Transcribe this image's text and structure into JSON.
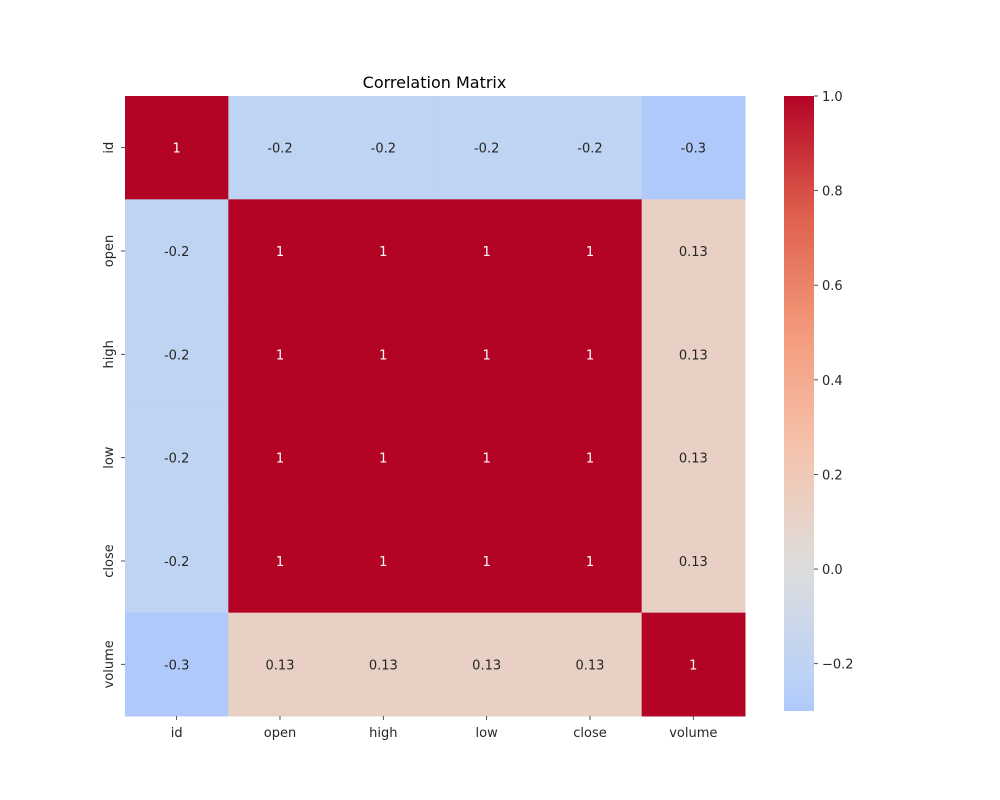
{
  "chart_data": {
    "type": "heatmap",
    "title": "Correlation Matrix",
    "xlabel": "",
    "ylabel": "",
    "x_categories": [
      "id",
      "open",
      "high",
      "low",
      "close",
      "volume"
    ],
    "y_categories": [
      "id",
      "open",
      "high",
      "low",
      "close",
      "volume"
    ],
    "values": [
      [
        1.0,
        -0.2,
        -0.2,
        -0.2,
        -0.2,
        -0.3
      ],
      [
        -0.2,
        1.0,
        1.0,
        1.0,
        1.0,
        0.13
      ],
      [
        -0.2,
        1.0,
        1.0,
        1.0,
        1.0,
        0.13
      ],
      [
        -0.2,
        1.0,
        1.0,
        1.0,
        1.0,
        0.13
      ],
      [
        -0.2,
        1.0,
        1.0,
        1.0,
        1.0,
        0.13
      ],
      [
        -0.3,
        0.13,
        0.13,
        0.13,
        0.13,
        1.0
      ]
    ],
    "annotations": [
      [
        "1",
        "-0.2",
        "-0.2",
        "-0.2",
        "-0.2",
        "-0.3"
      ],
      [
        "-0.2",
        "1",
        "1",
        "1",
        "1",
        "0.13"
      ],
      [
        "-0.2",
        "1",
        "1",
        "1",
        "1",
        "0.13"
      ],
      [
        "-0.2",
        "1",
        "1",
        "1",
        "1",
        "0.13"
      ],
      [
        "-0.2",
        "1",
        "1",
        "1",
        "1",
        "0.13"
      ],
      [
        "-0.3",
        "0.13",
        "0.13",
        "0.13",
        "0.13",
        "1"
      ]
    ],
    "colormap": "coolwarm",
    "colorbar": {
      "vmin": -0.3,
      "vmax": 1.0,
      "ticks": [
        1.0,
        0.8,
        0.6,
        0.4,
        0.2,
        0.0,
        -0.2
      ],
      "tick_labels": [
        "1.0",
        "0.8",
        "0.6",
        "0.4",
        "0.2",
        "0.0",
        "−0.2"
      ],
      "placement": "right"
    },
    "grid": false
  }
}
